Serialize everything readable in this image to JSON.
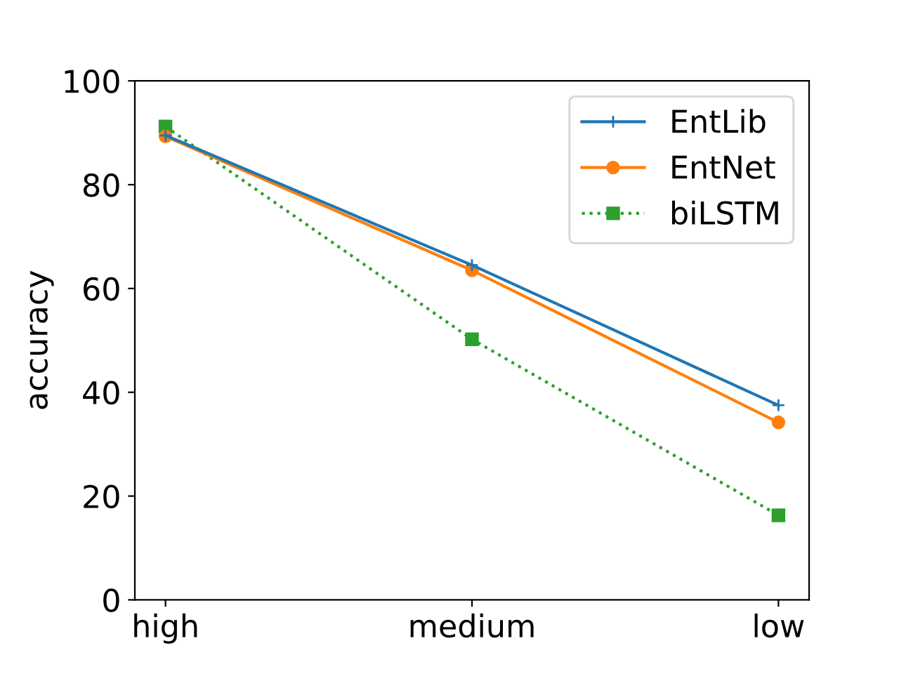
{
  "chart_data": {
    "type": "line",
    "ylabel": "accuracy",
    "categories": [
      "high",
      "medium",
      "low"
    ],
    "series": [
      {
        "name": "EntLib",
        "color": "#1f77b4",
        "values": [
          89.5,
          64.5,
          37.5
        ],
        "marker": "cross",
        "line_style": "solid"
      },
      {
        "name": "EntNet",
        "color": "#ff7f0e",
        "values": [
          89.3,
          63.5,
          34.2
        ],
        "marker": "circle",
        "line_style": "solid"
      },
      {
        "name": "biLSTM",
        "color": "#2ca02c",
        "values": [
          91.2,
          50.2,
          16.3
        ],
        "marker": "square",
        "line_style": "dotted"
      }
    ],
    "ylim": [
      0,
      100
    ],
    "yticks": [
      0,
      20,
      40,
      60,
      80,
      100
    ],
    "legend": "top right",
    "grid": false
  }
}
